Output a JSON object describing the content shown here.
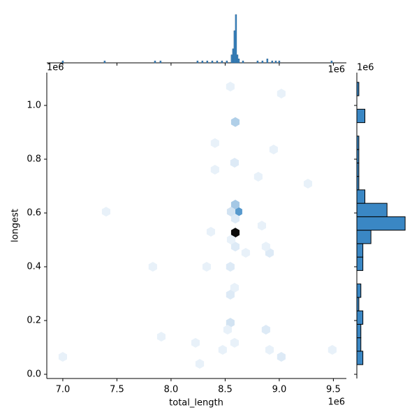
{
  "chart_data": {
    "type": "hexbin",
    "xlabel": "total_length",
    "ylabel": "longest",
    "x_offset_label": "1e6",
    "y_offset_label": "1e6",
    "top_offset_label": "1e6",
    "right_offset_label": "1e6",
    "xlim": [
      6.852,
      9.62
    ],
    "ylim": [
      -0.0156,
      1.122
    ],
    "xticks": [
      {
        "value": 7,
        "label": "7.0"
      },
      7.5,
      {
        "value": 8,
        "label": "8.0"
      },
      8.5,
      {
        "value": 9,
        "label": "9.0"
      },
      9.5
    ],
    "yticks": [
      {
        "value": 0,
        "label": "0.0"
      },
      0.2,
      0.4,
      0.6,
      0.8,
      {
        "value": 1,
        "label": "1.0"
      }
    ],
    "color": "#3a87c4",
    "hexbins": {
      "x": [
        8.594,
        8.619,
        8.594,
        8.594,
        8.548,
        9.019,
        8.406,
        8.948,
        8.587,
        8.806,
        8.406,
        9.265,
        7.4,
        8.368,
        8.839,
        8.91,
        8.877,
        8.69,
        7.832,
        8.329,
        8.548,
        8.587,
        8.548,
        8.548,
        8.877,
        8.523,
        7.91,
        8.226,
        8.587,
        8.477,
        8.91,
        8.265,
        9.019,
        9.49,
        7.0,
        8.555,
        8.594,
        8.594,
        8.555
      ],
      "y": [
        0.527,
        0.605,
        0.631,
        0.938,
        1.07,
        1.044,
        0.86,
        0.836,
        0.787,
        0.735,
        0.761,
        0.709,
        0.605,
        0.53,
        0.553,
        0.452,
        0.475,
        0.452,
        0.4,
        0.4,
        0.4,
        0.322,
        0.296,
        0.192,
        0.166,
        0.166,
        0.14,
        0.117,
        0.117,
        0.091,
        0.091,
        0.039,
        0.065,
        0.091,
        0.065,
        0.605,
        0.579,
        0.475,
        0.501
      ],
      "counts": [
        40,
        14,
        7,
        6,
        1,
        1,
        1,
        1,
        2,
        1,
        1,
        1,
        1,
        1,
        1,
        2,
        1,
        1,
        1,
        1,
        2,
        1,
        2,
        3,
        2,
        1,
        1,
        1,
        1,
        1,
        1,
        1,
        2,
        1,
        1,
        3,
        2,
        2,
        1
      ]
    },
    "x_marginal": {
      "x": [
        7.0,
        7.387,
        7.852,
        7.903,
        8.245,
        8.29,
        8.335,
        8.381,
        8.426,
        8.471,
        8.516,
        8.561,
        8.574,
        8.587,
        8.6,
        8.613,
        8.626,
        8.665,
        8.8,
        8.845,
        8.89,
        8.935,
        8.968,
        9.0,
        9.484
      ],
      "counts": [
        1,
        1,
        1,
        1,
        1,
        1,
        1,
        1,
        1,
        1,
        1,
        4,
        7,
        16,
        24,
        4,
        2,
        1,
        1,
        1,
        2,
        1,
        1,
        1,
        1
      ],
      "bin_width": 0.013,
      "ylim": [
        0,
        25
      ]
    },
    "y_marginal": {
      "bins": [
        0.036,
        0.086,
        0.136,
        0.186,
        0.236,
        0.286,
        0.336,
        0.386,
        0.436,
        0.486,
        0.536,
        0.586,
        0.636,
        0.686,
        0.736,
        0.786,
        0.836,
        0.886,
        0.936,
        0.986,
        1.036,
        1.086
      ],
      "counts": [
        3,
        2,
        2,
        3,
        1,
        2,
        0,
        3,
        3,
        7,
        24,
        15,
        4,
        1,
        1,
        1,
        1,
        0,
        4,
        0,
        1
      ],
      "xlim": [
        0,
        25
      ]
    }
  }
}
